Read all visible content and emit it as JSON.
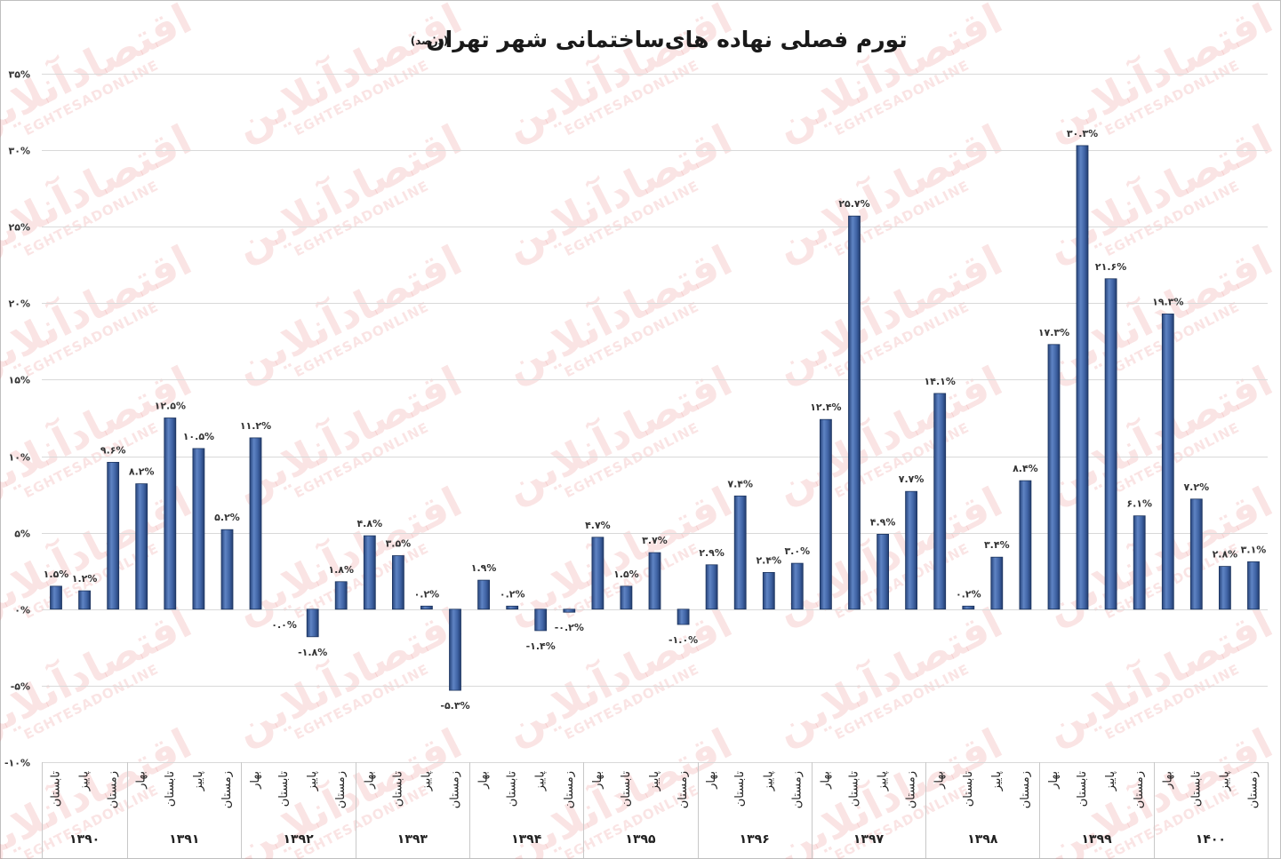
{
  "chart_data": {
    "type": "bar",
    "title": "تورم فصلی نهاده های‌ساختمانی شهر تهران",
    "subtitle": "(درصد)",
    "ylim": [
      -10,
      35
    ],
    "grid": true,
    "y_ticks": [
      {
        "value": 35,
        "label": "۳۵%"
      },
      {
        "value": 30,
        "label": "۳۰%"
      },
      {
        "value": 25,
        "label": "۲۵%"
      },
      {
        "value": 20,
        "label": "۲۰%"
      },
      {
        "value": 15,
        "label": "۱۵%"
      },
      {
        "value": 10,
        "label": "۱۰%"
      },
      {
        "value": 5,
        "label": "۵%"
      },
      {
        "value": 0,
        "label": "۰%"
      },
      {
        "value": -5,
        "label": "-۵%"
      },
      {
        "value": -10,
        "label": "-۱۰%"
      }
    ],
    "groups": [
      {
        "year": "۱۳۹۰",
        "seasons": [
          "تابستان",
          "پاییز",
          "زمستان"
        ],
        "values": [
          1.5,
          1.2,
          9.6
        ],
        "labels": [
          "۱.۵%",
          "۱.۲%",
          "۹.۶%"
        ]
      },
      {
        "year": "۱۳۹۱",
        "seasons": [
          "بهار",
          "تابستان",
          "پاییز",
          "زمستان"
        ],
        "values": [
          8.2,
          12.5,
          10.5,
          5.2
        ],
        "labels": [
          "۸.۲%",
          "۱۲.۵%",
          "۱۰.۵%",
          "۵.۲%"
        ]
      },
      {
        "year": "۱۳۹۲",
        "seasons": [
          "بهار",
          "تابستان",
          "پاییز",
          "زمستان"
        ],
        "values": [
          11.2,
          0.0,
          -1.8,
          1.8
        ],
        "labels": [
          "۱۱.۲%",
          "۰.۰%",
          "-۱.۸%",
          "۱.۸%"
        ]
      },
      {
        "year": "۱۳۹۳",
        "seasons": [
          "بهار",
          "تابستان",
          "پاییز",
          "زمستان"
        ],
        "values": [
          4.8,
          3.5,
          0.2,
          -5.3
        ],
        "labels": [
          "۴.۸%",
          "۳.۵%",
          "۰.۲%",
          "-۵.۳%"
        ]
      },
      {
        "year": "۱۳۹۴",
        "seasons": [
          "بهار",
          "تابستان",
          "پاییز",
          "زمستان"
        ],
        "values": [
          1.9,
          0.2,
          -1.4,
          -0.2
        ],
        "labels": [
          "۱.۹%",
          "۰.۲%",
          "-۱.۴%",
          "-۰.۲%"
        ]
      },
      {
        "year": "۱۳۹۵",
        "seasons": [
          "بهار",
          "تابستان",
          "پاییز",
          "زمستان"
        ],
        "values": [
          4.7,
          1.5,
          3.7,
          -1.0
        ],
        "labels": [
          "۴.۷%",
          "۱.۵%",
          "۳.۷%",
          "-۱.۰%"
        ]
      },
      {
        "year": "۱۳۹۶",
        "seasons": [
          "بهار",
          "تابستان",
          "پاییز",
          "زمستان"
        ],
        "values": [
          2.9,
          7.4,
          2.4,
          3.0
        ],
        "labels": [
          "۲.۹%",
          "۷.۴%",
          "۲.۴%",
          "۳.۰%"
        ]
      },
      {
        "year": "۱۳۹۷",
        "seasons": [
          "بهار",
          "تابستان",
          "پاییز",
          "زمستان"
        ],
        "values": [
          12.4,
          25.7,
          4.9,
          7.7
        ],
        "labels": [
          "۱۲.۴%",
          "۲۵.۷%",
          "۴.۹%",
          "۷.۷%"
        ]
      },
      {
        "year": "۱۳۹۸",
        "seasons": [
          "بهار",
          "تابستان",
          "پاییز",
          "زمستان"
        ],
        "values": [
          14.1,
          0.2,
          3.4,
          8.4
        ],
        "labels": [
          "۱۴.۱%",
          "۰.۲%",
          "۳.۴%",
          "۸.۴%"
        ]
      },
      {
        "year": "۱۳۹۹",
        "seasons": [
          "بهار",
          "تابستان",
          "پاییز",
          "زمستان"
        ],
        "values": [
          17.3,
          30.3,
          21.6,
          6.1
        ],
        "labels": [
          "۱۷.۳%",
          "۳۰.۳%",
          "۲۱.۶%",
          "۶.۱%"
        ]
      },
      {
        "year": "۱۴۰۰",
        "seasons": [
          "بهار",
          "تابستان",
          "پاییز",
          "زمستان"
        ],
        "values": [
          19.3,
          7.2,
          2.8,
          3.1
        ],
        "labels": [
          "۱۹.۳%",
          "۷.۲%",
          "۲.۸%",
          "۳.۱%"
        ]
      }
    ]
  },
  "watermark": {
    "text_fa": "اقتصادآنلاین",
    "text_en": "EGHTESADONLINE"
  },
  "colors": {
    "bar": "#3f63a4",
    "bar_highlight": "#5f84c4",
    "bar_edge": "#1d355f",
    "gridline": "#d9d9d9",
    "watermark": "#e04848"
  }
}
